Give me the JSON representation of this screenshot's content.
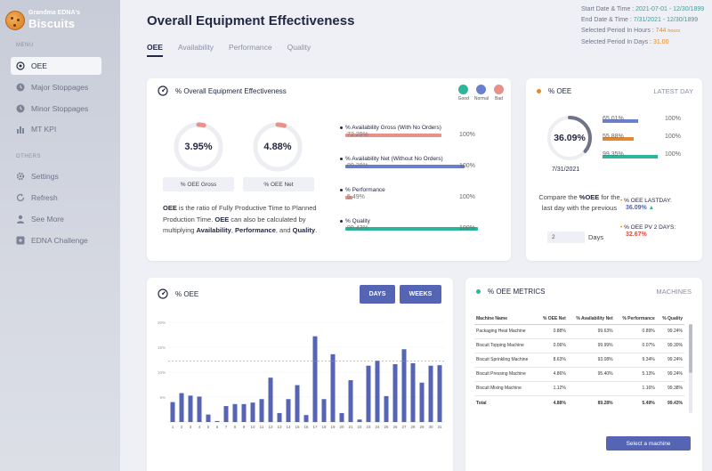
{
  "brand": {
    "line1": "Grandma EDNA's",
    "line2": "Biscuits"
  },
  "sidebar": {
    "menu_label": "MENU",
    "others_label": "OTHERS",
    "items": [
      {
        "label": "OEE",
        "icon": "target-icon"
      },
      {
        "label": "Major Stoppages",
        "icon": "clock-icon"
      },
      {
        "label": "Minor Stoppages",
        "icon": "clock-icon"
      },
      {
        "label": "MT KPI",
        "icon": "bar-chart-icon"
      }
    ],
    "others": [
      {
        "label": "Settings",
        "icon": "gear-icon"
      },
      {
        "label": "Refresh",
        "icon": "refresh-icon"
      },
      {
        "label": "See More",
        "icon": "user-icon"
      },
      {
        "label": "EDNA Challenge",
        "icon": "grid-icon"
      }
    ]
  },
  "header": {
    "title": "Overall Equipment Effectiveness",
    "tabs": [
      "OEE",
      "Availability",
      "Performance",
      "Quality"
    ],
    "start_label": "Start Date & Time :",
    "start_value": "2021-07-01 - 12/30/1899",
    "end_label": "End Date & Time :",
    "end_value": "7/31/2021 - 12/30/1899",
    "period_label": "Selected Period In Hours :",
    "period_value": "744",
    "period_unit": "hours",
    "period_days_label": "Selected Period In Days :",
    "period_days_value": "31.00"
  },
  "oee_card": {
    "title": "% Overall Equipment Effectiveness",
    "legend": [
      {
        "label": "Good",
        "color": "#2bb59a"
      },
      {
        "label": "Normal",
        "color": "#6b7fd1"
      },
      {
        "label": "Bad",
        "color": "#e8908a"
      }
    ],
    "gross_value": "3.95%",
    "gross_label": "% OEE Gross",
    "gross_fraction": 0.0395,
    "net_value": "4.88%",
    "net_label": "% OEE Net",
    "net_fraction": 0.0488,
    "desc": {
      "p1": "OEE",
      "p2": " is the ratio of Fully Productive Time to Planned Production Time. ",
      "p3": "OEE",
      "p4": " can also be calculated by multiplying ",
      "p5": "Availability",
      "p6": ", ",
      "p7": "Performance",
      "p8": ", and ",
      "p9": "Quality",
      "p10": "."
    },
    "bars": [
      {
        "label": "% Availability Gross (With No Orders)",
        "value": "72.29%",
        "max": "100%",
        "fraction": 0.7229,
        "color": "#e8908a"
      },
      {
        "label": "% Availability Net (Without No Orders)",
        "value": "89.28%",
        "max": "100%",
        "fraction": 0.8928,
        "color": "#6b7fd1"
      },
      {
        "label": "% Performance",
        "value": "5.49%",
        "max": "100%",
        "fraction": 0.0549,
        "color": "#e8908a"
      },
      {
        "label": "% Quality",
        "value": "99.43%",
        "max": "100%",
        "fraction": 0.9943,
        "color": "#2bb59a"
      }
    ]
  },
  "latest_card": {
    "title": "% OEE",
    "tag": "LATEST DAY",
    "value": "36.09%",
    "fraction": 0.3609,
    "date": "7/31/2021",
    "bars": [
      {
        "value": "65.01%",
        "max": "100%",
        "fraction": 0.6501,
        "color": "#6b7fd1"
      },
      {
        "value": "55.88%",
        "max": "100%",
        "fraction": 0.5588,
        "color": "#e8862a"
      },
      {
        "value": "99.35%",
        "max": "100%",
        "fraction": 0.9935,
        "color": "#2bb59a"
      }
    ],
    "compare_1": "Compare the ",
    "compare_b": "%OEE",
    "compare_2": " for the last day with the previous",
    "days_value": "2",
    "days_label": "Days",
    "lastday_label": "% OEE  LASTDAY:",
    "lastday_value": "36.09%",
    "pv_label": "% OEE PV 2 DAYS:",
    "pv_value": "32.67%"
  },
  "chart_card": {
    "title": "% OEE",
    "btn_days": "DAYS",
    "btn_weeks": "WEEKS"
  },
  "chart_data": {
    "type": "bar",
    "categories": [
      "1",
      "2",
      "3",
      "4",
      "5",
      "6",
      "7",
      "8",
      "9",
      "10",
      "11",
      "12",
      "13",
      "14",
      "15",
      "16",
      "17",
      "18",
      "19",
      "20",
      "21",
      "22",
      "23",
      "24",
      "25",
      "26",
      "27",
      "28",
      "29",
      "30",
      "31"
    ],
    "values": [
      4,
      5.8,
      5.3,
      5.1,
      1.5,
      0.2,
      3.2,
      3.6,
      3.6,
      3.9,
      4.6,
      8.9,
      1.8,
      4.6,
      7.4,
      1.4,
      17.2,
      4.6,
      13.6,
      1.8,
      8.4,
      0.5,
      11.3,
      12.3,
      5.2,
      11.6,
      14.6,
      11.8,
      7.9,
      11.3,
      11.4
    ],
    "reference_line": 12.2,
    "y_ticks": [
      "20%",
      "15%",
      "10%",
      "5%"
    ],
    "ylim": [
      0,
      20
    ],
    "grid": true,
    "bar_color": "#5565b3"
  },
  "metrics_card": {
    "title": "% OEE METRICS",
    "tag": "MACHINES",
    "headers": [
      "Machine Name",
      "% OEE Net",
      "% Availability Net",
      "% Performance",
      "% Quality"
    ],
    "rows": [
      [
        "Packaging Heat Machine",
        "0.88%",
        "99.63%",
        "0.89%",
        "99.24%"
      ],
      [
        "Biscuit Topping Machine",
        "0.06%",
        "99.99%",
        "0.07%",
        "99.30%"
      ],
      [
        "Biscuit Sprinkling Machine",
        "8.63%",
        "93.08%",
        "9.34%",
        "99.24%"
      ],
      [
        "Biscuit Pressing Machine",
        "4.86%",
        "95.40%",
        "5.13%",
        "99.24%"
      ],
      [
        "Biscuit Mixing Machine",
        "1.12%",
        "",
        "1.16%",
        "99.38%"
      ]
    ],
    "total": [
      "Total",
      "4.88%",
      "89.28%",
      "5.49%",
      "99.43%"
    ],
    "select_label": "Select a machine"
  }
}
